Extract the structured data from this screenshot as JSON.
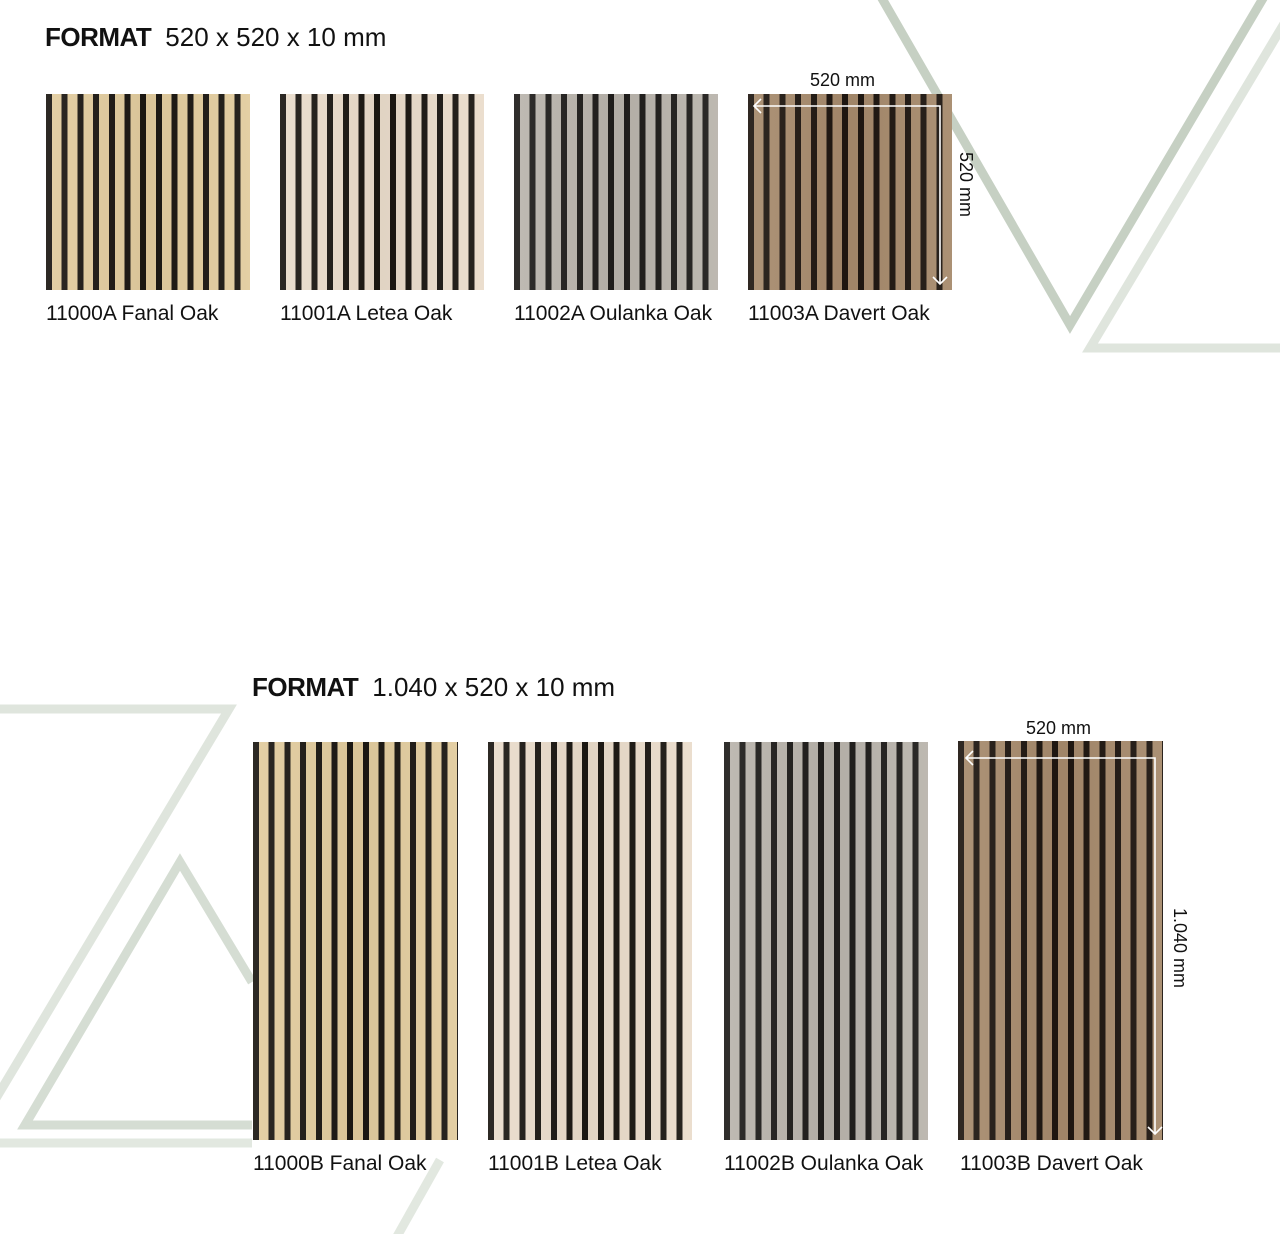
{
  "sections": [
    {
      "format_label": "FORMAT",
      "format_size": "520 x 520 x 10 mm",
      "dimension_width": "520 mm",
      "dimension_height": "520 mm",
      "products": [
        {
          "name": "11000A Fanal Oak",
          "wood_color": "#e2cc9e",
          "slat_color": "#1b1712"
        },
        {
          "name": "11001A Letea Oak",
          "wood_color": "#eadccb",
          "slat_color": "#1b1712"
        },
        {
          "name": "11002A Oulanka Oak",
          "wood_color": "#b9b4ac",
          "slat_color": "#1f1d1b"
        },
        {
          "name": "11003A Davert Oak",
          "wood_color": "#a68a6c",
          "slat_color": "#1e1610"
        }
      ]
    },
    {
      "format_label": "FORMAT",
      "format_size": "1.040 x 520 x 10 mm",
      "dimension_width": "520 mm",
      "dimension_height": "1.040 mm",
      "products": [
        {
          "name": "11000B Fanal Oak",
          "wood_color": "#e2cc9e",
          "slat_color": "#1b1712"
        },
        {
          "name": "11001B Letea Oak",
          "wood_color": "#eadccb",
          "slat_color": "#1b1712"
        },
        {
          "name": "11002B Oulanka Oak",
          "wood_color": "#b9b4ac",
          "slat_color": "#1f1d1b"
        },
        {
          "name": "11003B Davert Oak",
          "wood_color": "#a68a6c",
          "slat_color": "#1e1610"
        }
      ]
    }
  ],
  "colors": {
    "decor_line": "#c9d3c6",
    "decor_line_light": "#dfe5dd",
    "dimension_arrow": "#ffffff"
  }
}
